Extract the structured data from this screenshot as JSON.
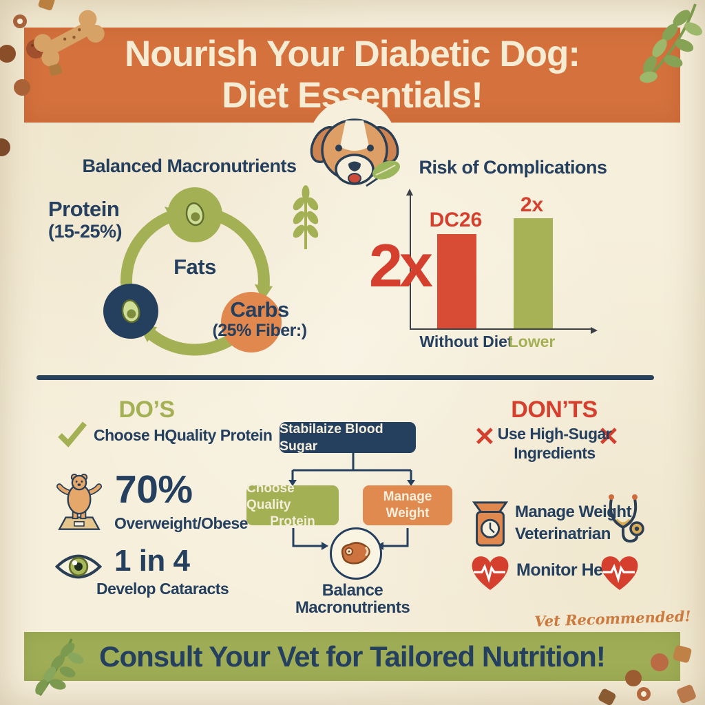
{
  "header": {
    "title_line1": "Nourish Your Diabetic Dog:",
    "title_line2": "Diet Essentials!"
  },
  "macros": {
    "heading": "Balanced Macronutrients",
    "protein": "Protein",
    "protein_pct": "(15-25%)",
    "fats": "Fats",
    "carbs": "Carbs",
    "carbs_pct": "(25% Fiber:)"
  },
  "risk": {
    "heading": "Risk of Complications",
    "big_multiplier": "2x"
  },
  "chart_data": {
    "type": "bar",
    "title": "Risk of Complications",
    "categories": [
      "Without Diet",
      "Lower"
    ],
    "bars": [
      {
        "label": "DC26",
        "category": "Without Diet",
        "height": 137,
        "color": "#d84b35"
      },
      {
        "label": "2x",
        "category": "Lower",
        "height": 160,
        "color": "#a7b257"
      }
    ],
    "annotation": "2x",
    "xlabel": "",
    "ylabel": "",
    "axis_values_shown": false,
    "legend": false
  },
  "dos": {
    "heading": "DO’S",
    "check_item": "Choose HQuality Protein",
    "stat1_value": "70%",
    "stat1_label": "Overweight/Obese",
    "stat2_value": "1 in 4",
    "stat2_label": "Develop Cataracts"
  },
  "flow": {
    "top": "Stabilaize Blood Sugar",
    "left_line1": "Choose Quality",
    "left_line2": "Protein",
    "right_line1": "Manage",
    "right_line2": "Weight",
    "caption": "Balance Macronutrients"
  },
  "donts": {
    "heading": "DON’TS",
    "cross_icon": "✕",
    "item1_line1": "Use High-Sugar",
    "item1_line2": "Ingredients",
    "item2": "Manage Weight",
    "item3": "Veterinatrian",
    "item4": "Monitor Health"
  },
  "footer": {
    "note": "Vet Recommended!",
    "banner": "Consult Your Vet for Tailored Nutrition!"
  },
  "colors": {
    "background_cream": "#f6efdb",
    "banner_orange": "#d4713d",
    "banner_green": "#9fae56",
    "navy": "#25405e",
    "olive_green": "#a3b054",
    "alert_red": "#d5402e",
    "accent_orange": "#e08a50",
    "script_orange": "#cd7a3e"
  }
}
